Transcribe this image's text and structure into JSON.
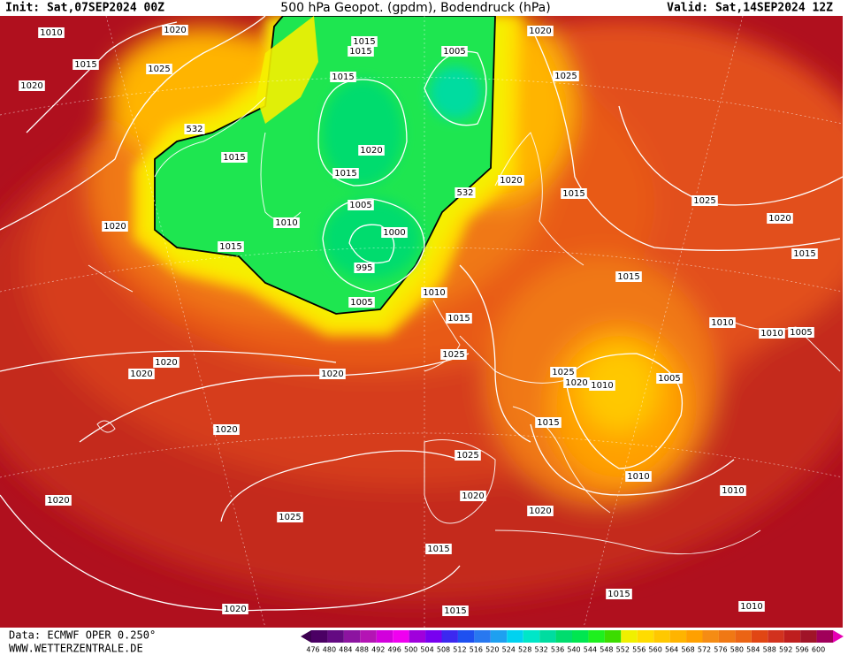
{
  "header": {
    "init": "Init: Sat,07SEP2024 00Z",
    "title": "500 hPa Geopot. (gpdm), Bodendruck (hPa)",
    "valid": "Valid: Sat,14SEP2024 12Z"
  },
  "isobar_labels": [
    1010,
    1020,
    1015,
    1025,
    1020,
    532,
    1015,
    1015,
    1015,
    1005,
    1015,
    1020,
    1015,
    1005,
    1010,
    1000,
    1015,
    995,
    1005,
    1010,
    1015,
    1020,
    1020,
    1025,
    1020,
    532,
    1015,
    1025,
    1020,
    1015,
    1015,
    1010,
    1010,
    1005,
    1025,
    1020,
    1020,
    1020,
    1025,
    1020,
    1010,
    1005,
    1015,
    1020,
    1025,
    1010,
    1010,
    1020,
    1020,
    1020,
    1025,
    1015,
    1015,
    1010,
    1020,
    1015
  ],
  "footer": {
    "data": "Data: ECMWF OPER 0.250°",
    "site": "WWW.WETTERZENTRALE.DE"
  },
  "colorbar": {
    "values": [
      476,
      480,
      484,
      488,
      492,
      496,
      500,
      504,
      508,
      512,
      516,
      520,
      524,
      528,
      532,
      536,
      540,
      544,
      548,
      552,
      556,
      560,
      564,
      568,
      572,
      576,
      580,
      584,
      588,
      592,
      596,
      600
    ],
    "colors": [
      "#4b0064",
      "#640a82",
      "#8c14a0",
      "#b414b4",
      "#d200dc",
      "#f000f0",
      "#a000dc",
      "#7800f0",
      "#3c28f0",
      "#1e50f0",
      "#2878f0",
      "#1ea0f0",
      "#00d2f0",
      "#00e6c8",
      "#00dca0",
      "#00dc6e",
      "#00e650",
      "#1ef01e",
      "#3cdc00",
      "#f0f000",
      "#ffdc00",
      "#ffc800",
      "#ffb400",
      "#ffa000",
      "#f58c14",
      "#f07814",
      "#eb6414",
      "#e14614",
      "#d2321e",
      "#be1e1e",
      "#a01428",
      "#a0005a"
    ]
  }
}
